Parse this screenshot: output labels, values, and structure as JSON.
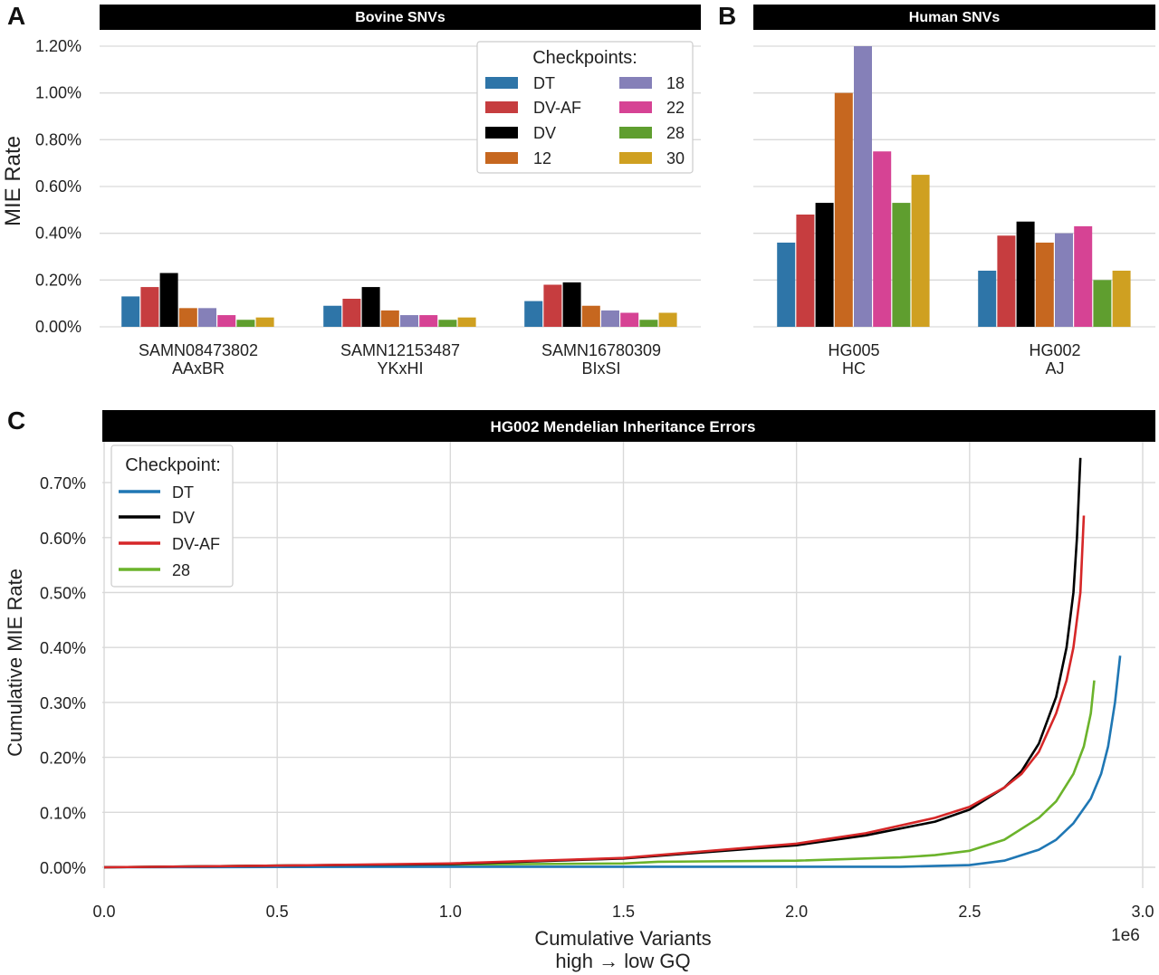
{
  "panels": {
    "A": {
      "letter": "A",
      "strip_title": "Bovine SNVs"
    },
    "B": {
      "letter": "B",
      "strip_title": "Human SNVs"
    },
    "C": {
      "letter": "C",
      "strip_title": "HG002 Mendelian Inheritance Errors"
    }
  },
  "colors": {
    "DT": "#2e75a8",
    "DV-AF": "#c63d3f",
    "DV": "#000000",
    "12": "#c6671f",
    "18": "#8580b8",
    "22": "#d64394",
    "28": "#5f9e2f",
    "30": "#cfa021",
    "line_DT": "#1f77b4",
    "line_DV": "#000000",
    "line_DV-AF": "#d62728",
    "line_28": "#6bb32b",
    "strip_bg": "#000000",
    "grid": "#d9d9d9"
  },
  "bar_legend": {
    "title": "Checkpoints:",
    "col1": [
      "DT",
      "DV-AF",
      "DV",
      "12"
    ],
    "col2": [
      "18",
      "22",
      "28",
      "30"
    ]
  },
  "line_legend": {
    "title": "Checkpoint:",
    "items": [
      "DT",
      "DV",
      "DV-AF",
      "28"
    ]
  },
  "chart_data": [
    {
      "type": "bar",
      "title": "Bovine SNVs",
      "ylabel": "MIE Rate",
      "ylim": [
        0,
        1.2
      ],
      "yticks": [
        "0.00%",
        "0.20%",
        "0.40%",
        "0.60%",
        "0.80%",
        "1.00%",
        "1.20%"
      ],
      "categories": [
        [
          "SAMN08473802",
          "AAxBR"
        ],
        [
          "SAMN12153487",
          "YKxHI"
        ],
        [
          "SAMN16780309",
          "BIxSI"
        ]
      ],
      "series": [
        {
          "name": "DT",
          "values": [
            0.13,
            0.09,
            0.11
          ]
        },
        {
          "name": "DV-AF",
          "values": [
            0.17,
            0.12,
            0.18
          ]
        },
        {
          "name": "DV",
          "values": [
            0.23,
            0.17,
            0.19
          ]
        },
        {
          "name": "12",
          "values": [
            0.08,
            0.07,
            0.09
          ]
        },
        {
          "name": "18",
          "values": [
            0.08,
            0.05,
            0.07
          ]
        },
        {
          "name": "22",
          "values": [
            0.05,
            0.05,
            0.06
          ]
        },
        {
          "name": "28",
          "values": [
            0.03,
            0.03,
            0.03
          ]
        },
        {
          "name": "30",
          "values": [
            0.04,
            0.04,
            0.06
          ]
        }
      ],
      "legend": "top-right"
    },
    {
      "type": "bar",
      "title": "Human SNVs",
      "ylim": [
        0,
        1.2
      ],
      "categories": [
        [
          "HG005",
          "HC"
        ],
        [
          "HG002",
          "AJ"
        ]
      ],
      "series": [
        {
          "name": "DT",
          "values": [
            0.36,
            0.24
          ]
        },
        {
          "name": "DV-AF",
          "values": [
            0.48,
            0.39
          ]
        },
        {
          "name": "DV",
          "values": [
            0.53,
            0.45
          ]
        },
        {
          "name": "12",
          "values": [
            1.0,
            0.36
          ]
        },
        {
          "name": "18",
          "values": [
            1.2,
            0.4
          ]
        },
        {
          "name": "22",
          "values": [
            0.75,
            0.43
          ]
        },
        {
          "name": "28",
          "values": [
            0.53,
            0.2
          ]
        },
        {
          "name": "30",
          "values": [
            0.65,
            0.24
          ]
        }
      ]
    },
    {
      "type": "line",
      "title": "HG002 Mendelian Inheritance Errors",
      "xlabel": [
        "Cumulative Variants",
        "high → low GQ"
      ],
      "ylabel": "Cumulative MIE Rate",
      "x_multiplier": "1e6",
      "xlim": [
        0,
        3.0
      ],
      "ylim": [
        -0.04,
        0.76
      ],
      "xticks": [
        "0.0",
        "0.5",
        "1.0",
        "1.5",
        "2.0",
        "2.5",
        "3.0"
      ],
      "yticks": [
        "0.00%",
        "0.10%",
        "0.20%",
        "0.30%",
        "0.40%",
        "0.50%",
        "0.60%",
        "0.70%"
      ],
      "legend": "top-left",
      "series": [
        {
          "name": "DT",
          "x": [
            0,
            0.5,
            1.0,
            1.5,
            2.0,
            2.3,
            2.5,
            2.6,
            2.7,
            2.75,
            2.8,
            2.85,
            2.88,
            2.9,
            2.92,
            2.935
          ],
          "y": [
            0,
            0.0005,
            0.001,
            0.001,
            0.001,
            0.001,
            0.004,
            0.012,
            0.032,
            0.05,
            0.08,
            0.125,
            0.17,
            0.22,
            0.3,
            0.385
          ]
        },
        {
          "name": "DV",
          "x": [
            0,
            0.5,
            1.0,
            1.5,
            2.0,
            2.2,
            2.4,
            2.5,
            2.6,
            2.65,
            2.7,
            2.75,
            2.78,
            2.8,
            2.81,
            2.82
          ],
          "y": [
            0,
            0.003,
            0.006,
            0.016,
            0.04,
            0.058,
            0.083,
            0.105,
            0.145,
            0.175,
            0.225,
            0.31,
            0.4,
            0.5,
            0.6,
            0.745
          ]
        },
        {
          "name": "DV-AF",
          "x": [
            0,
            0.5,
            1.0,
            1.5,
            2.0,
            2.2,
            2.4,
            2.5,
            2.6,
            2.65,
            2.7,
            2.75,
            2.78,
            2.8,
            2.82,
            2.83
          ],
          "y": [
            0,
            0.003,
            0.007,
            0.017,
            0.043,
            0.062,
            0.09,
            0.11,
            0.145,
            0.17,
            0.21,
            0.28,
            0.34,
            0.4,
            0.5,
            0.64
          ]
        },
        {
          "name": "28",
          "x": [
            0,
            0.5,
            1.0,
            1.5,
            1.6,
            2.0,
            2.3,
            2.4,
            2.5,
            2.6,
            2.7,
            2.75,
            2.8,
            2.83,
            2.85,
            2.86
          ],
          "y": [
            0,
            0.003,
            0.005,
            0.007,
            0.01,
            0.012,
            0.018,
            0.022,
            0.03,
            0.05,
            0.09,
            0.12,
            0.17,
            0.22,
            0.28,
            0.34
          ]
        }
      ]
    }
  ]
}
